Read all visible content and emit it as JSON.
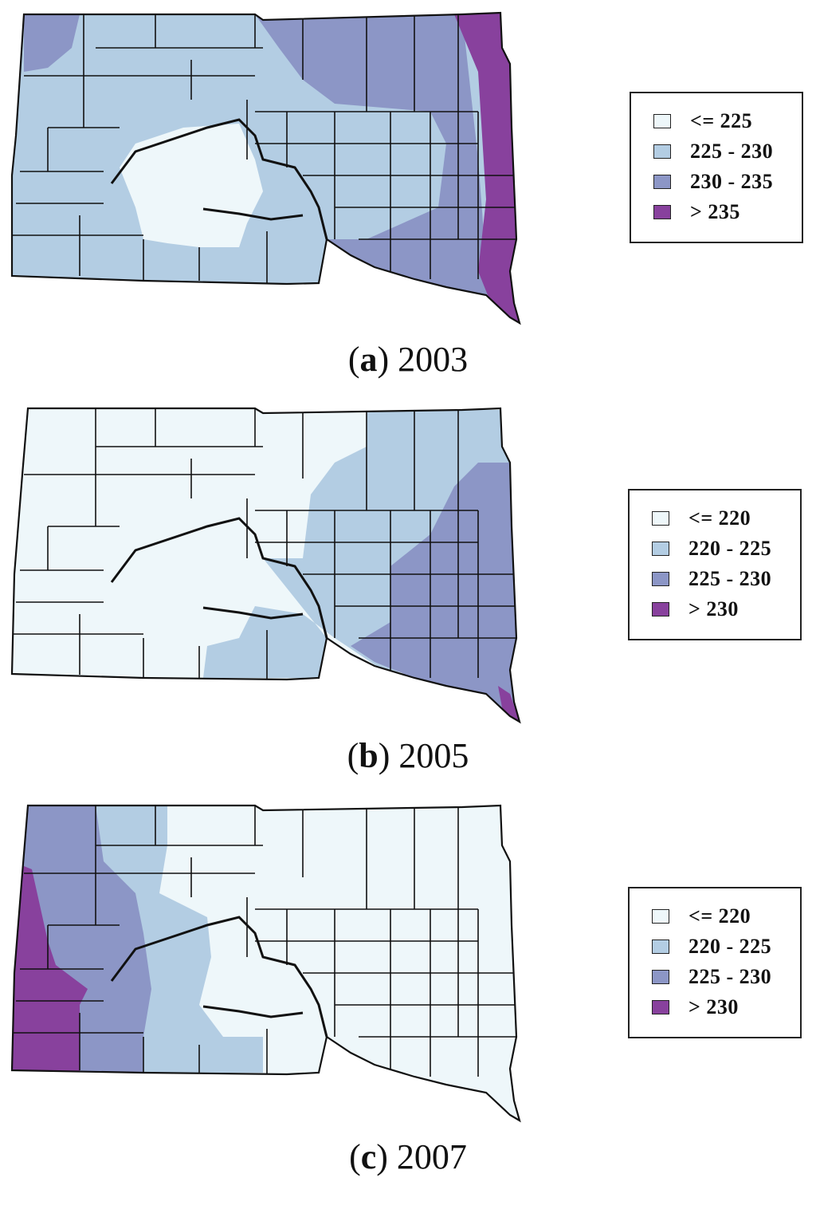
{
  "colors": {
    "c1": "#eef7fa",
    "c2": "#b3cde3",
    "c3": "#8c96c6",
    "c4": "#88419d",
    "outline": "#111111"
  },
  "panels": [
    {
      "letter": "a",
      "year": "2003",
      "legend": [
        {
          "label": "<= 225",
          "color": "#eef7fa"
        },
        {
          "label": "225 - 230",
          "color": "#b3cde3"
        },
        {
          "label": "230 - 235",
          "color": "#8c96c6"
        },
        {
          "label": "> 235",
          "color": "#88419d"
        }
      ]
    },
    {
      "letter": "b",
      "year": "2005",
      "legend": [
        {
          "label": "<= 220",
          "color": "#eef7fa"
        },
        {
          "label": "220 - 225",
          "color": "#b3cde3"
        },
        {
          "label": "225 - 230",
          "color": "#8c96c6"
        },
        {
          "label": "> 230",
          "color": "#88419d"
        }
      ]
    },
    {
      "letter": "c",
      "year": "2007",
      "legend": [
        {
          "label": "<= 220",
          "color": "#eef7fa"
        },
        {
          "label": "220 - 225",
          "color": "#b3cde3"
        },
        {
          "label": "225 - 230",
          "color": "#8c96c6"
        },
        {
          "label": "> 230",
          "color": "#88419d"
        }
      ]
    }
  ]
}
